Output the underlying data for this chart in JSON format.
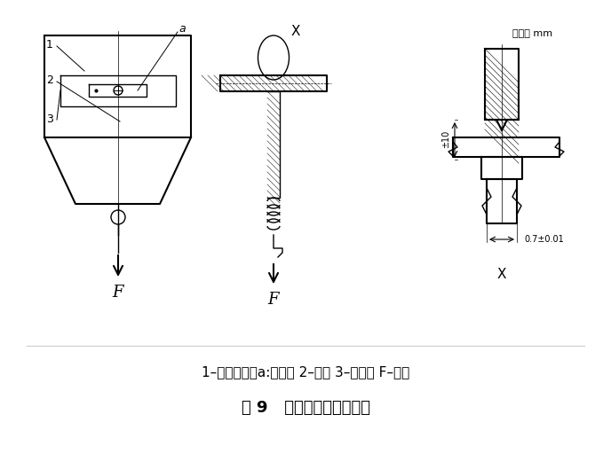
{
  "title": "图 9   加热变形性试验装置",
  "caption": "1–试验夹具（a:刀片） 2–试样 3–支持台 F–负载",
  "unit_label": "单位： mm",
  "dim_label1": "±10",
  "dim_label2": "0.7±0.01",
  "label_X_top": "X",
  "label_X_bot": "X",
  "label_F1": "F",
  "label_F2": "F",
  "label_a": "a",
  "label_1": "1",
  "label_2": "2",
  "label_3": "3",
  "bg_color": "#ffffff",
  "line_color": "#000000",
  "hatch_color": "#000000"
}
